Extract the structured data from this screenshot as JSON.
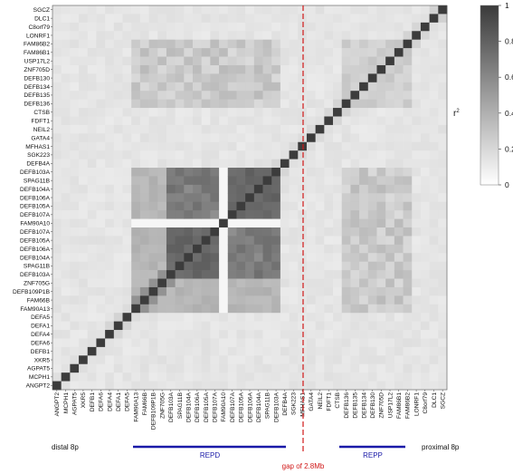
{
  "chart_data": {
    "type": "heatmap",
    "title": "",
    "genes_top_to_bottom": [
      "SGCZ",
      "DLC1",
      "C8orf79",
      "LONRF1",
      "FAM86B2",
      "FAM86B1",
      "USP17L2",
      "ZNF705D",
      "DEFB130",
      "DEFB134",
      "DEFB135",
      "DEFB136",
      "CTSB",
      "FDFT1",
      "NEIL2",
      "GATA4",
      "MFHAS1",
      "SGK223",
      "DEFB4A",
      "DEFB103A",
      "SPAG11B",
      "DEFB104A",
      "DEFB106A",
      "DEFB105A",
      "DEFB107A",
      "FAM90A10",
      "DEFB107A",
      "DEFB105A",
      "DEFB106A",
      "DEFB104A",
      "SPAG11B",
      "DEFB103A",
      "ZNF705G",
      "DEFB109P1B",
      "FAM66B",
      "FAM90A13",
      "DEFA5",
      "DEFA1",
      "DEFA4",
      "DEFA6",
      "DEFB1",
      "XKR5",
      "AGPAT5",
      "MCPH1",
      "ANGPT2"
    ],
    "genes_left_to_right": [
      "ANGPT2",
      "MCPH1",
      "AGPAT5",
      "XKR5",
      "DEFB1",
      "DEFA6",
      "DEFA4",
      "DEFA1",
      "DEFA5",
      "FAM90A13",
      "FAM66B",
      "DEFB109P1B",
      "ZNF705G",
      "DEFB103A",
      "SPAG11B",
      "DEFB104A",
      "DEFB106A",
      "DEFB105A",
      "DEFB107A",
      "FAM90A10",
      "DEFB107A",
      "DEFB105A",
      "DEFB106A",
      "DEFB104A",
      "SPAG11B",
      "DEFB103A",
      "DEFB4A",
      "SGK223",
      "MFHAS1",
      "GATA4",
      "NEIL2",
      "FDFT1",
      "CTSB",
      "DEFB136",
      "DEFB135",
      "DEFB134",
      "DEFB130",
      "ZNF705D",
      "USP17L2",
      "FAM86B1",
      "FAM86B2",
      "LONRF1",
      "C8orf79",
      "DLC1",
      "SGCZ"
    ],
    "value_description": "pairwise r2 (LD) between genes",
    "colorbar": {
      "label": "r",
      "label_superscript": "2",
      "min": 0,
      "max": 1,
      "ticks": [
        "0",
        "0.2",
        "0.4",
        "0.6",
        "0.8",
        "1"
      ]
    },
    "blocks": [
      {
        "name": "REPD",
        "index_range": [
          9,
          25
        ],
        "internal_r2": 0.72,
        "diagonal_band_r2": 0.55
      },
      {
        "name": "REPP",
        "index_range": [
          33,
          40
        ],
        "internal_r2": 0.18
      }
    ],
    "cross_block_r2": 0.16,
    "background_r2": 0.08,
    "diagonal_r2": 1.0,
    "annotations": {
      "distal": "distal 8p",
      "proximal": "proximal 8p",
      "repd": "REPD",
      "repp": "REPP",
      "gap": "gap of 2.8Mb"
    },
    "colors": {
      "block_bar": "#1a1aa8",
      "gap_line": "#d01818",
      "gap_text": "#d01818"
    }
  }
}
